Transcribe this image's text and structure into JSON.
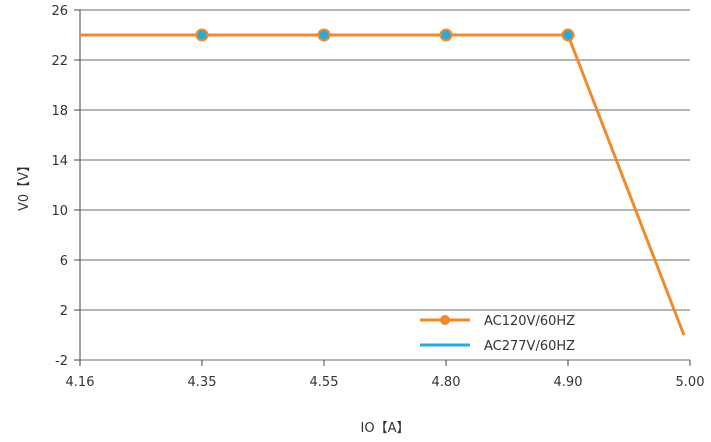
{
  "chart_data": {
    "type": "line",
    "x_axis": {
      "label": "IO【A】",
      "tick_labels": [
        "4.16",
        "4.35",
        "4.55",
        "4.80",
        "4.90",
        "5.00"
      ],
      "scale": "categorical-evenly-spaced"
    },
    "y_axis": {
      "label": "V0【V】",
      "ylim": [
        -2,
        26
      ],
      "ticks": [
        26,
        22,
        18,
        14,
        10,
        6,
        2,
        -2
      ]
    },
    "grid": "horizontal",
    "legend_position": "bottom-right",
    "series": [
      {
        "name": "AC120V/60HZ",
        "color": "#F08A2C",
        "marker_fill": "#29A9D8",
        "points": [
          {
            "x_index": 0.0,
            "y": 24,
            "marker": false
          },
          {
            "x_index": 1.0,
            "y": 24,
            "marker": true
          },
          {
            "x_index": 2.0,
            "y": 24,
            "marker": true
          },
          {
            "x_index": 3.0,
            "y": 24,
            "marker": true
          },
          {
            "x_index": 4.0,
            "y": 24,
            "marker": true
          },
          {
            "x_index": 4.95,
            "y": 0,
            "marker": false
          }
        ]
      },
      {
        "name": "AC277V/60HZ",
        "color": "#29A9D8",
        "points": []
      }
    ]
  }
}
